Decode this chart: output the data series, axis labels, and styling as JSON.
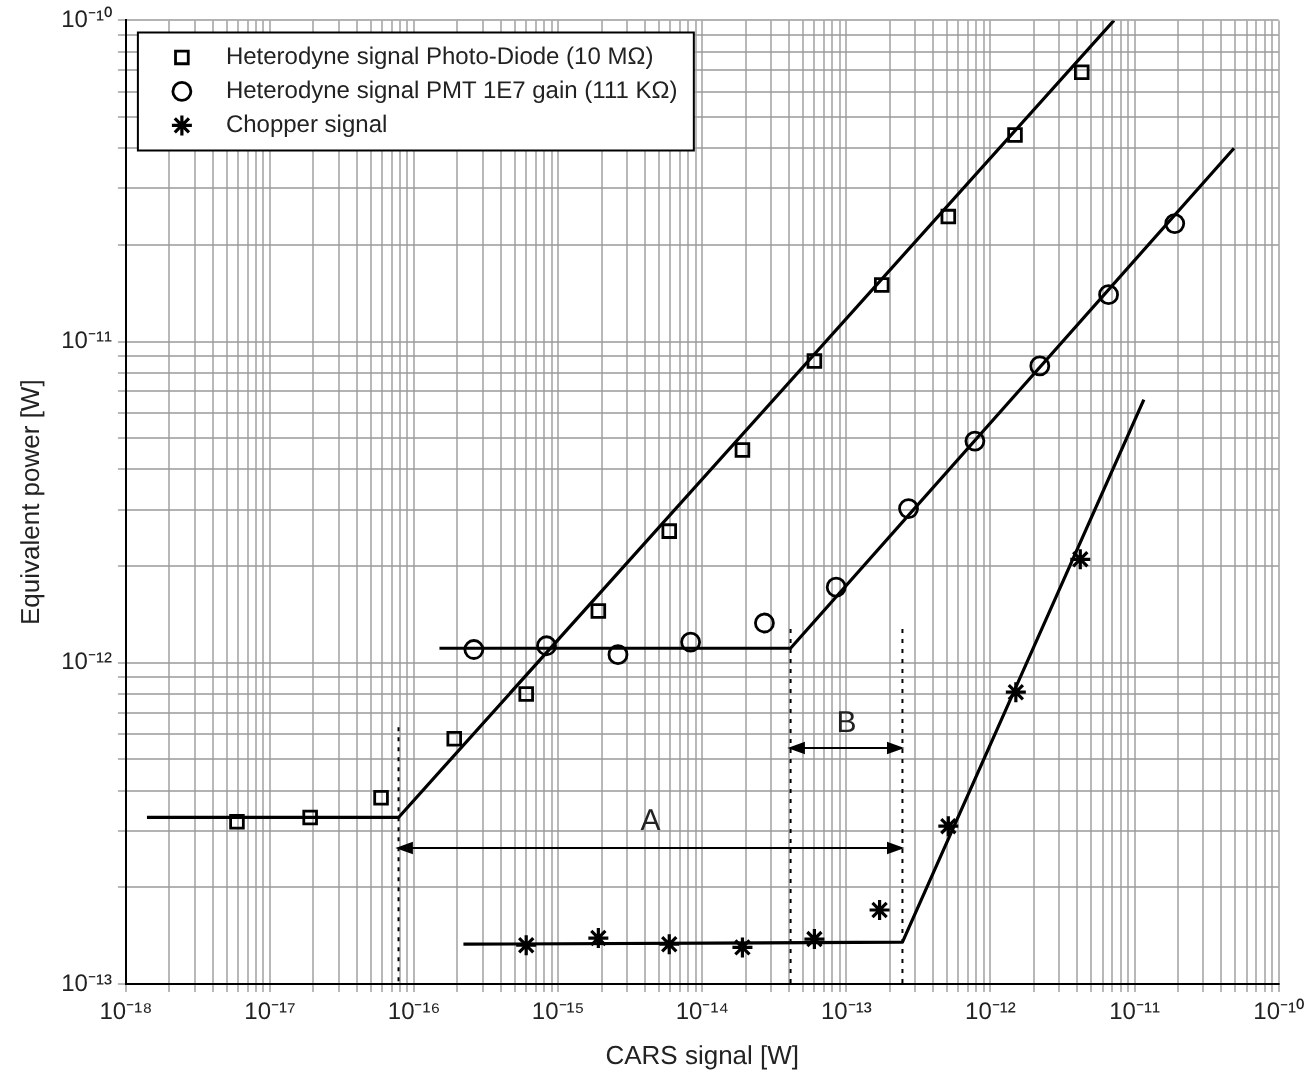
{
  "chart_data": {
    "type": "scatter",
    "xlabel": "CARS signal [W]",
    "ylabel": "Equivalent power [W]",
    "log": "xy",
    "grid": true,
    "legend": "top left",
    "xlim": [
      1e-18,
      1e-10
    ],
    "ylim": [
      1e-13,
      1e-10
    ],
    "xticks": [
      {
        "value": 1e-18,
        "label": "10⁻¹⁸"
      },
      {
        "value": 2e-18,
        "label": null
      },
      {
        "value": 3e-18,
        "label": null
      },
      {
        "value": 4e-18,
        "label": null
      },
      {
        "value": 5e-18,
        "label": null
      },
      {
        "value": 6e-18,
        "label": null
      },
      {
        "value": 7e-18,
        "label": null
      },
      {
        "value": 8e-18,
        "label": null
      },
      {
        "value": 9e-18,
        "label": null
      },
      {
        "value": 1e-17,
        "label": "10⁻¹⁷"
      },
      {
        "value": 2e-17,
        "label": null
      },
      {
        "value": 3e-17,
        "label": null
      },
      {
        "value": 4e-17,
        "label": null
      },
      {
        "value": 5e-17,
        "label": null
      },
      {
        "value": 6e-17,
        "label": null
      },
      {
        "value": 7e-17,
        "label": null
      },
      {
        "value": 8e-17,
        "label": null
      },
      {
        "value": 9e-17,
        "label": null
      },
      {
        "value": 1e-16,
        "label": "10⁻¹⁶"
      },
      {
        "value": 2e-16,
        "label": null
      },
      {
        "value": 3e-16,
        "label": null
      },
      {
        "value": 4e-16,
        "label": null
      },
      {
        "value": 5e-16,
        "label": null
      },
      {
        "value": 6e-16,
        "label": null
      },
      {
        "value": 7e-16,
        "label": null
      },
      {
        "value": 8e-16,
        "label": null
      },
      {
        "value": 9e-16,
        "label": null
      },
      {
        "value": 1e-15,
        "label": "10⁻¹⁵"
      },
      {
        "value": 2e-15,
        "label": null
      },
      {
        "value": 3e-15,
        "label": null
      },
      {
        "value": 4e-15,
        "label": null
      },
      {
        "value": 5e-15,
        "label": null
      },
      {
        "value": 6e-15,
        "label": null
      },
      {
        "value": 7e-15,
        "label": null
      },
      {
        "value": 8e-15,
        "label": null
      },
      {
        "value": 9e-15,
        "label": null
      },
      {
        "value": 1e-14,
        "label": "10⁻¹⁴"
      },
      {
        "value": 2e-14,
        "label": null
      },
      {
        "value": 3e-14,
        "label": null
      },
      {
        "value": 4e-14,
        "label": null
      },
      {
        "value": 5e-14,
        "label": null
      },
      {
        "value": 6e-14,
        "label": null
      },
      {
        "value": 7e-14,
        "label": null
      },
      {
        "value": 8e-14,
        "label": null
      },
      {
        "value": 9e-14,
        "label": null
      },
      {
        "value": 1e-13,
        "label": "10⁻¹³"
      },
      {
        "value": 2e-13,
        "label": null
      },
      {
        "value": 3e-13,
        "label": null
      },
      {
        "value": 4e-13,
        "label": null
      },
      {
        "value": 5e-13,
        "label": null
      },
      {
        "value": 6e-13,
        "label": null
      },
      {
        "value": 7e-13,
        "label": null
      },
      {
        "value": 8e-13,
        "label": null
      },
      {
        "value": 9e-13,
        "label": null
      },
      {
        "value": 1e-12,
        "label": "10⁻¹²"
      },
      {
        "value": 2e-12,
        "label": null
      },
      {
        "value": 3e-12,
        "label": null
      },
      {
        "value": 4e-12,
        "label": null
      },
      {
        "value": 5e-12,
        "label": null
      },
      {
        "value": 6e-12,
        "label": null
      },
      {
        "value": 7e-12,
        "label": null
      },
      {
        "value": 8e-12,
        "label": null
      },
      {
        "value": 9e-12,
        "label": null
      },
      {
        "value": 1e-11,
        "label": "10⁻¹¹"
      },
      {
        "value": 2e-11,
        "label": null
      },
      {
        "value": 3e-11,
        "label": null
      },
      {
        "value": 4e-11,
        "label": null
      },
      {
        "value": 5e-11,
        "label": null
      },
      {
        "value": 6e-11,
        "label": null
      },
      {
        "value": 7e-11,
        "label": null
      },
      {
        "value": 8e-11,
        "label": null
      },
      {
        "value": 9e-11,
        "label": null
      },
      {
        "value": 1e-10,
        "label": "10⁻¹⁰"
      }
    ],
    "yticks": [
      {
        "value": 1e-13,
        "label": "10⁻¹³"
      },
      {
        "value": 2e-13,
        "label": null
      },
      {
        "value": 3e-13,
        "label": null
      },
      {
        "value": 4e-13,
        "label": null
      },
      {
        "value": 5e-13,
        "label": null
      },
      {
        "value": 6e-13,
        "label": null
      },
      {
        "value": 7e-13,
        "label": null
      },
      {
        "value": 8e-13,
        "label": null
      },
      {
        "value": 9e-13,
        "label": null
      },
      {
        "value": 1e-12,
        "label": "10⁻¹²"
      },
      {
        "value": 2e-12,
        "label": null
      },
      {
        "value": 3e-12,
        "label": null
      },
      {
        "value": 4e-12,
        "label": null
      },
      {
        "value": 5e-12,
        "label": null
      },
      {
        "value": 6e-12,
        "label": null
      },
      {
        "value": 7e-12,
        "label": null
      },
      {
        "value": 8e-12,
        "label": null
      },
      {
        "value": 9e-12,
        "label": null
      },
      {
        "value": 1e-11,
        "label": "10⁻¹¹"
      },
      {
        "value": 2e-11,
        "label": null
      },
      {
        "value": 3e-11,
        "label": null
      },
      {
        "value": 4e-11,
        "label": null
      },
      {
        "value": 5e-11,
        "label": null
      },
      {
        "value": 6e-11,
        "label": null
      },
      {
        "value": 7e-11,
        "label": null
      },
      {
        "value": 8e-11,
        "label": null
      },
      {
        "value": 9e-11,
        "label": null
      },
      {
        "value": 1e-10,
        "label": "10⁻¹⁰"
      }
    ],
    "series": [
      {
        "name": "Heterodyne signal Photo-Diode (10 MΩ)",
        "type": "scatter",
        "marker": "square",
        "color": "#000000",
        "x": [
          5.9e-18,
          1.9e-17,
          5.9e-17,
          1.9e-16,
          6e-16,
          1.9e-15,
          5.9e-15,
          1.9e-14,
          6e-14,
          1.76e-13,
          5.1e-13,
          1.48e-12,
          4.3e-12
        ],
        "values": [
          3.2e-13,
          3.3e-13,
          3.8e-13,
          5.8e-13,
          8e-13,
          1.45e-12,
          2.57e-12,
          4.6e-12,
          8.7e-12,
          1.5e-11,
          2.45e-11,
          4.4e-11,
          6.9e-11
        ]
      },
      {
        "name": "Heterodyne signal PMT 1E7 gain (111 KΩ)",
        "type": "scatter",
        "marker": "circle",
        "color": "#000000",
        "x": [
          2.6e-16,
          8.3e-16,
          2.6e-15,
          8.3e-15,
          2.7e-14,
          8.5e-14,
          2.7e-13,
          7.8e-13,
          2.2e-12,
          6.6e-12,
          1.9e-11
        ],
        "values": [
          1.1e-12,
          1.13e-12,
          1.06e-12,
          1.16e-12,
          1.33e-12,
          1.72e-12,
          3.02e-12,
          4.9e-12,
          8.4e-12,
          1.4e-11,
          2.33e-11
        ]
      },
      {
        "name": "Chopper signal",
        "type": "scatter",
        "marker": "cross",
        "color": "#000000",
        "x": [
          6e-16,
          1.9e-15,
          5.9e-15,
          1.9e-14,
          6e-14,
          1.7e-13,
          5.1e-13,
          1.5e-12,
          4.2e-12
        ],
        "values": [
          1.32e-13,
          1.39e-13,
          1.33e-13,
          1.3e-13,
          1.38e-13,
          1.7e-13,
          3.1e-13,
          8.1e-13,
          2.1e-12
        ]
      },
      {
        "type": "line",
        "marker": "none",
        "line_style": "solid",
        "color": "#000000",
        "x": [
          1.4e-18,
          7.8e-17,
          7.2e-12
        ],
        "values": [
          3.3e-13,
          3.3e-13,
          1e-10
        ]
      },
      {
        "type": "line",
        "marker": "none",
        "line_style": "solid",
        "color": "#000000",
        "x": [
          1.5e-16,
          4.1e-14,
          4.9e-11
        ],
        "values": [
          1.11e-12,
          1.11e-12,
          4e-11
        ]
      },
      {
        "type": "line",
        "marker": "none",
        "line_style": "solid",
        "color": "#000000",
        "x": [
          2.2e-16,
          2.45e-13,
          1.16e-11
        ],
        "values": [
          1.33e-13,
          1.35e-13,
          6.6e-12
        ]
      }
    ],
    "ref_lines": [
      {
        "axis": "x",
        "value": 7.8e-17,
        "line_style": "dotted",
        "color": "#000000"
      },
      {
        "axis": "x",
        "value": 4.1e-14,
        "line_style": "dotted",
        "color": "#000000"
      },
      {
        "axis": "x",
        "value": 2.45e-13,
        "line_style": "dotted",
        "color": "#000000"
      }
    ],
    "annotations": [
      "A",
      "B"
    ]
  }
}
